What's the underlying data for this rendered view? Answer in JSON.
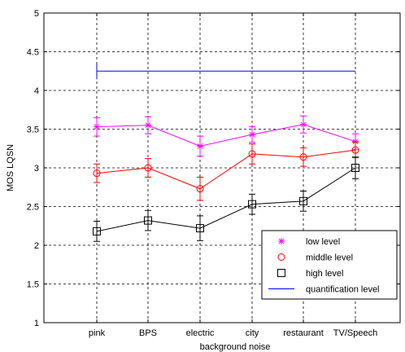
{
  "chart_data": {
    "type": "line",
    "title": "",
    "xlabel": "background noise",
    "ylabel": "MOS LQSN",
    "categories": [
      "pink",
      "BPS",
      "electric",
      "city",
      "restaurant",
      "TV/Speech"
    ],
    "ylim": [
      1,
      5
    ],
    "yticks": [
      "1",
      "1.5",
      "2",
      "2.5",
      "3",
      "3.5",
      "4",
      "4.5",
      "5"
    ],
    "grid": true,
    "legend_position": "bottom-right",
    "series": [
      {
        "name": "low level",
        "marker": "star",
        "color": "#ff00ff",
        "values": [
          3.53,
          3.55,
          3.28,
          3.43,
          3.56,
          3.34
        ],
        "error": [
          0.12,
          0.11,
          0.13,
          0.1,
          0.11,
          0.1
        ]
      },
      {
        "name": "middle level",
        "marker": "circle",
        "color": "#ff0000",
        "values": [
          2.93,
          3.0,
          2.73,
          3.18,
          3.14,
          3.23
        ],
        "error": [
          0.12,
          0.12,
          0.15,
          0.13,
          0.12,
          0.1
        ]
      },
      {
        "name": "high level",
        "marker": "square",
        "color": "#000000",
        "values": [
          2.18,
          2.32,
          2.22,
          2.53,
          2.57,
          3.0
        ],
        "error": [
          0.13,
          0.13,
          0.16,
          0.13,
          0.13,
          0.14
        ]
      },
      {
        "name": "quantification level",
        "marker": "none",
        "color": "#0000ff",
        "values": [
          4.25,
          4.25,
          4.25,
          4.25,
          4.25,
          4.25
        ]
      }
    ]
  }
}
